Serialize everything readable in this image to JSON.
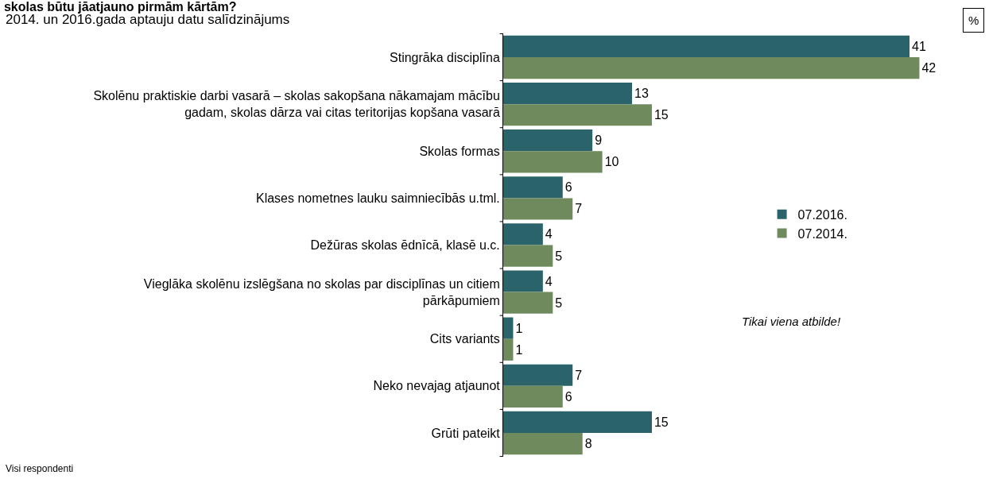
{
  "chart_data": {
    "type": "bar",
    "orientation": "horizontal",
    "title": "skolas būtu jāatjauno pirmām kārtām?",
    "subtitle": "2014. un 2016.gada aptauju datu salīdzinājums",
    "categories": [
      "Stingrāka disciplīna",
      "Skolēnu praktiskie darbi vasarā – skolas sakopšana nākamajam mācību gadam, skolas dārza vai citas teritorijas kopšana vasarā",
      "Skolas formas",
      "Klases nometnes lauku saimniecībās u.tml.",
      "Dežūras skolas ēdnīcā, klasē u.c.",
      "Vieglāka skolēnu izslēgšana no skolas par disciplīnas un citiem pārkāpumiem",
      "Cits variants",
      "Neko nevajag atjaunot",
      "Grūti pateikt"
    ],
    "series": [
      {
        "name": "07.2016.",
        "color": "#2a6369",
        "values": [
          41,
          13,
          9,
          6,
          4,
          4,
          1,
          7,
          15
        ]
      },
      {
        "name": "07.2014.",
        "color": "#6f8b5e",
        "values": [
          42,
          15,
          10,
          7,
          5,
          5,
          1,
          6,
          8
        ]
      }
    ],
    "data_labels": true,
    "legend": "right",
    "annotations": [
      "Tikai viena atbilde!",
      "Visi respondenti",
      "%"
    ]
  }
}
